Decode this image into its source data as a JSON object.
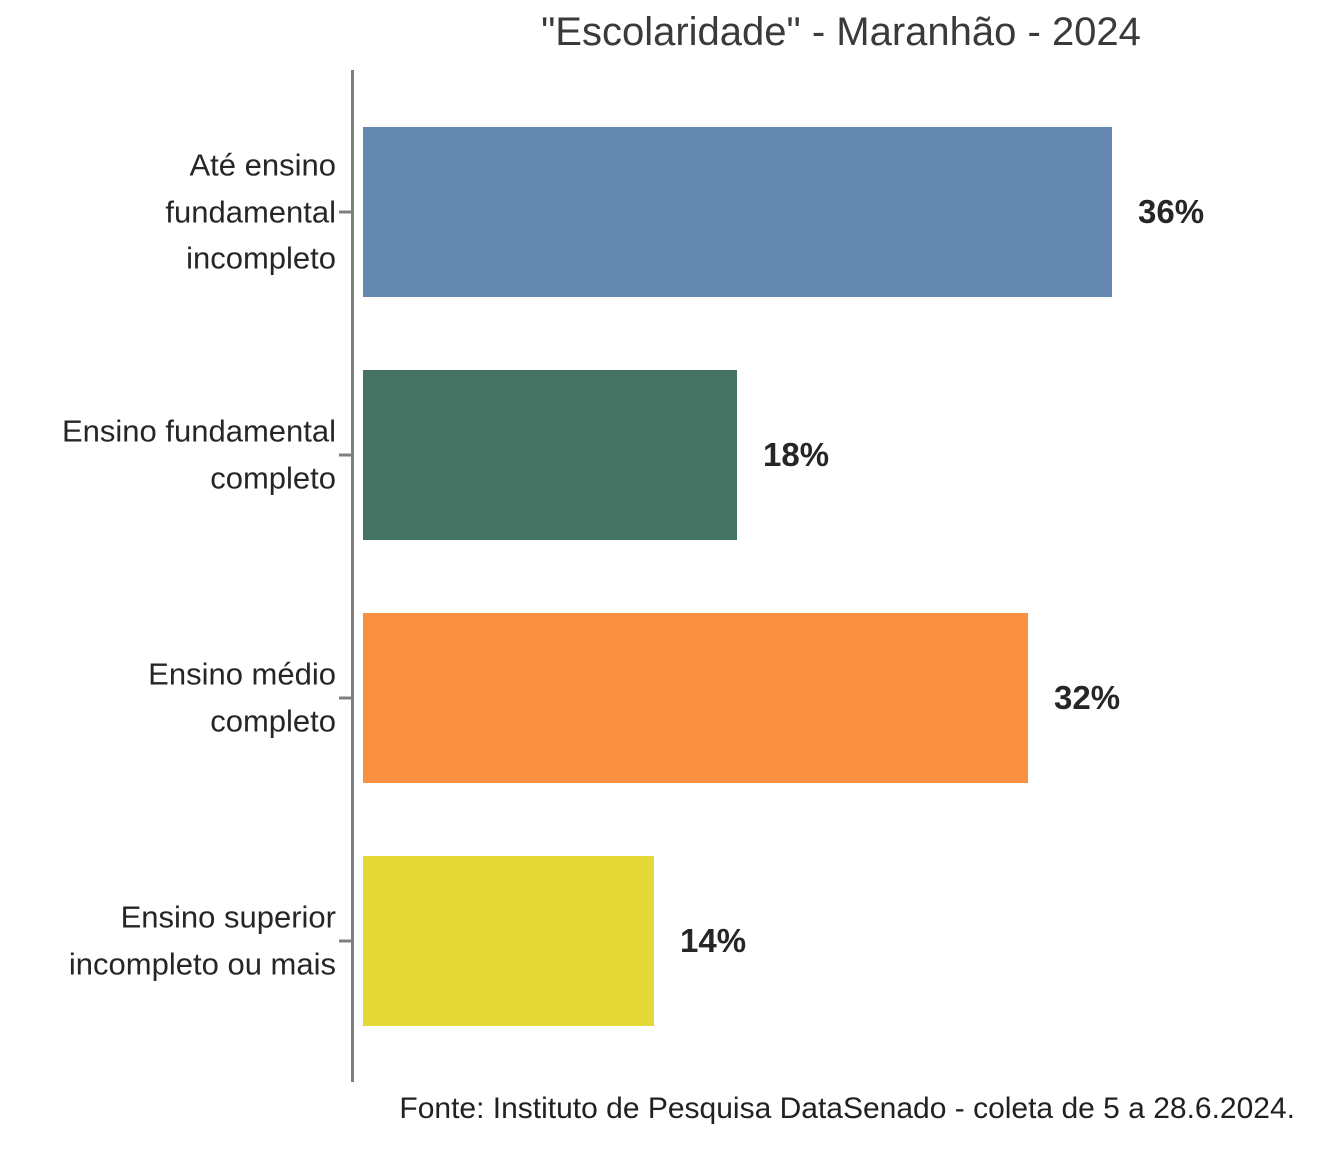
{
  "chart_data": {
    "type": "bar",
    "orientation": "horizontal",
    "title": "\"Escolaridade\" - Maranhão - 2024",
    "source": "Fonte: Instituto de Pesquisa DataSenado - coleta de 5 a 28.6.2024.",
    "categories": [
      "Até ensino\nfundamental\nincompleto",
      "Ensino fundamental\ncompleto",
      "Ensino médio\ncompleto",
      "Ensino superior\nincompleto ou mais"
    ],
    "values": [
      36,
      18,
      32,
      14
    ],
    "value_labels": [
      "36%",
      "18%",
      "32%",
      "14%"
    ],
    "bar_colors": [
      "#6588b0",
      "#457363",
      "#f99140",
      "#e5d938"
    ],
    "xlabel": "",
    "ylabel": "",
    "xlim": [
      0,
      46.5
    ],
    "grid": false,
    "legend": false,
    "axis_color": "#7f7f7f",
    "text_color": "#262626",
    "title_color": "#3a3a3a"
  }
}
